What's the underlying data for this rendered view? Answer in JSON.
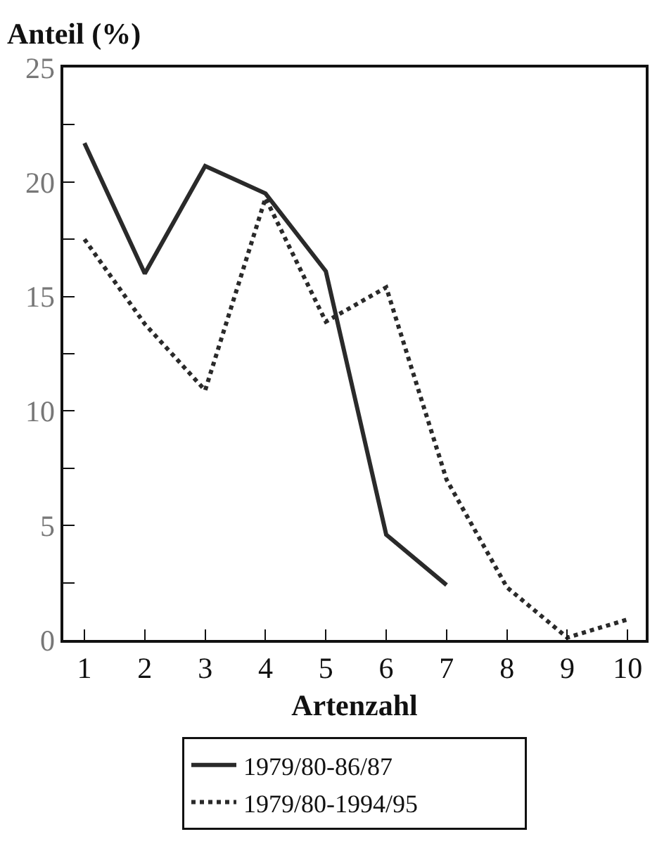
{
  "chart_data": {
    "type": "line",
    "ylabel": "Anteil (%)",
    "xlabel": "Artenzahl",
    "x": [
      1,
      2,
      3,
      4,
      5,
      6,
      7,
      8,
      9,
      10
    ],
    "series": [
      {
        "name": "1979/80-86/87",
        "color": "#2a2a2a",
        "line_style": "solid",
        "values": [
          21.7,
          16.0,
          20.7,
          19.5,
          16.1,
          4.6,
          2.4,
          null,
          null,
          null
        ]
      },
      {
        "name": "1979/80-1994/95",
        "color": "#2a2a2a",
        "line_style": "dotted",
        "values": [
          17.5,
          13.8,
          10.9,
          19.3,
          13.9,
          15.4,
          7.0,
          2.3,
          0.1,
          0.9
        ]
      }
    ],
    "xlim": [
      0.65,
      10.3
    ],
    "xticks": [
      1,
      2,
      3,
      4,
      5,
      6,
      7,
      8,
      9,
      10
    ],
    "ylim": [
      0,
      25
    ],
    "yticks": [
      0,
      {
        "value": 2.5,
        "label": null
      },
      5,
      {
        "value": 7.5,
        "label": null
      },
      10,
      {
        "value": 12.5,
        "label": null
      },
      15,
      {
        "value": 17.5,
        "label": null
      },
      20,
      {
        "value": 22.5,
        "label": null
      },
      25
    ],
    "grid": false,
    "legend": "bottom",
    "marker": "none"
  }
}
